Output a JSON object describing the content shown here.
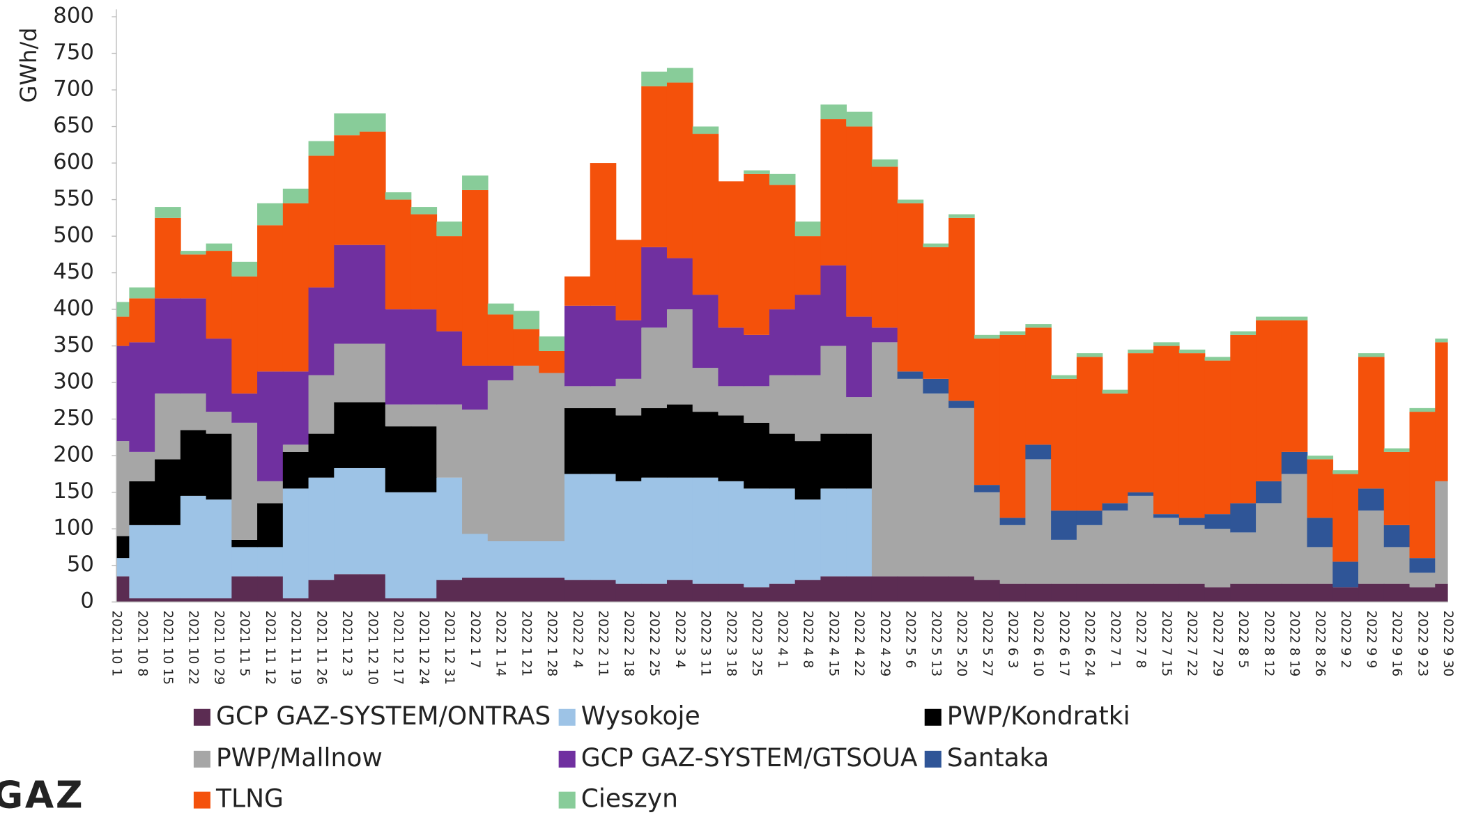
{
  "chart_data": {
    "type": "stacked_bar",
    "y_axis_label": "GWh/d",
    "logo": "GAZ",
    "ylim": [
      0,
      800
    ],
    "yticks": [
      0,
      50,
      100,
      150,
      200,
      250,
      300,
      350,
      400,
      450,
      500,
      550,
      600,
      650,
      700,
      750,
      800
    ],
    "categories": [
      "2021 10 1",
      "2021 10 8",
      "2021 10 15",
      "2021 10 22",
      "2021 10 29",
      "2021 11 5",
      "2021 11 12",
      "2021 11 19",
      "2021 11 26",
      "2021 12 3",
      "2021 12 10",
      "2021 12 17",
      "2021 12 24",
      "2021 12 31",
      "2022 1 7",
      "2022 1 14",
      "2022 1 21",
      "2022 1 28",
      "2022 2 4",
      "2022 2 11",
      "2022 2 18",
      "2022 2 25",
      "2022 3 4",
      "2022 3 11",
      "2022 3 18",
      "2022 3 25",
      "2022 4 1",
      "2022 4 8",
      "2022 4 15",
      "2022 4 22",
      "2022 4 29",
      "2022 5 6",
      "2022 5 13",
      "2022 5 20",
      "2022 5 27",
      "2022 6 3",
      "2022 6 10",
      "2022 6 17",
      "2022 6 24",
      "2022 7 1",
      "2022 7 8",
      "2022 7 15",
      "2022 7 22",
      "2022 7 29",
      "2022 8 5",
      "2022 8 12",
      "2022 8 19",
      "2022 8 26",
      "2022 9 2",
      "2022 9 9",
      "2022 9 16",
      "2022 9 23",
      "2022 9 30"
    ],
    "series": [
      {
        "name": "GCP GAZ-SYSTEM/ONTRAS",
        "color": "#5b2c52",
        "values": [
          35,
          5,
          5,
          5,
          5,
          35,
          35,
          5,
          30,
          38,
          38,
          5,
          5,
          30,
          33,
          33,
          33,
          33,
          30,
          30,
          25,
          25,
          30,
          25,
          25,
          20,
          25,
          30,
          35,
          35,
          35,
          35,
          35,
          35,
          30,
          25,
          25,
          25,
          25,
          25,
          25,
          25,
          25,
          20,
          25,
          25,
          25,
          25,
          20,
          25,
          25,
          20,
          25
        ]
      },
      {
        "name": "Wysokoje",
        "color": "#9dc3e6",
        "values": [
          25,
          100,
          100,
          140,
          135,
          40,
          40,
          150,
          140,
          145,
          145,
          145,
          145,
          140,
          60,
          50,
          50,
          50,
          145,
          145,
          140,
          145,
          140,
          145,
          140,
          135,
          130,
          110,
          120,
          120,
          0,
          0,
          0,
          0,
          0,
          0,
          0,
          0,
          0,
          0,
          0,
          0,
          0,
          0,
          0,
          0,
          0,
          0,
          0,
          0,
          0,
          0,
          0
        ]
      },
      {
        "name": "PWP/Kondratki",
        "color": "#000000",
        "values": [
          30,
          60,
          90,
          90,
          90,
          10,
          60,
          50,
          60,
          90,
          90,
          90,
          90,
          0,
          0,
          0,
          0,
          0,
          90,
          90,
          90,
          95,
          100,
          90,
          90,
          90,
          75,
          80,
          75,
          75,
          0,
          0,
          0,
          0,
          0,
          0,
          0,
          0,
          0,
          0,
          0,
          0,
          0,
          0,
          0,
          0,
          0,
          0,
          0,
          0,
          0,
          0,
          0
        ]
      },
      {
        "name": "PWP/Mallnow",
        "color": "#a6a6a6",
        "values": [
          130,
          40,
          90,
          50,
          30,
          160,
          30,
          10,
          80,
          80,
          80,
          30,
          30,
          100,
          170,
          220,
          240,
          230,
          30,
          30,
          50,
          110,
          130,
          60,
          40,
          50,
          80,
          90,
          120,
          50,
          320,
          270,
          250,
          230,
          120,
          80,
          170,
          60,
          80,
          100,
          120,
          90,
          80,
          80,
          70,
          110,
          150,
          50,
          0,
          100,
          50,
          20,
          140
        ]
      },
      {
        "name": "GCP GAZ-SYSTEM/GTSOUA",
        "color": "#7030a0",
        "values": [
          130,
          150,
          130,
          130,
          100,
          40,
          150,
          100,
          120,
          135,
          135,
          130,
          130,
          100,
          60,
          20,
          0,
          0,
          110,
          110,
          80,
          110,
          70,
          100,
          80,
          70,
          90,
          110,
          110,
          110,
          20,
          0,
          0,
          0,
          0,
          0,
          0,
          0,
          0,
          0,
          0,
          0,
          0,
          0,
          0,
          0,
          0,
          0,
          0,
          0,
          0,
          0,
          0
        ]
      },
      {
        "name": "Santaka",
        "color": "#2f5597",
        "values": [
          0,
          0,
          0,
          0,
          0,
          0,
          0,
          0,
          0,
          0,
          0,
          0,
          0,
          0,
          0,
          0,
          0,
          0,
          0,
          0,
          0,
          0,
          0,
          0,
          0,
          0,
          0,
          0,
          0,
          0,
          0,
          10,
          20,
          10,
          10,
          10,
          20,
          40,
          20,
          10,
          5,
          5,
          10,
          20,
          40,
          30,
          30,
          40,
          35,
          30,
          30,
          20,
          0
        ]
      },
      {
        "name": "TLNG",
        "color": "#f4510b",
        "values": [
          40,
          60,
          110,
          60,
          120,
          160,
          200,
          230,
          180,
          150,
          155,
          150,
          130,
          130,
          240,
          70,
          50,
          30,
          40,
          195,
          110,
          220,
          240,
          220,
          200,
          220,
          170,
          80,
          200,
          260,
          220,
          230,
          180,
          250,
          200,
          250,
          160,
          180,
          210,
          150,
          190,
          230,
          225,
          210,
          230,
          220,
          180,
          80,
          120,
          180,
          100,
          200,
          190
        ]
      },
      {
        "name": "Cieszyn",
        "color": "#88cc99",
        "values": [
          20,
          15,
          15,
          5,
          10,
          20,
          30,
          20,
          20,
          30,
          25,
          10,
          10,
          20,
          20,
          15,
          25,
          20,
          0,
          0,
          0,
          20,
          20,
          10,
          0,
          5,
          15,
          20,
          20,
          20,
          10,
          5,
          5,
          5,
          5,
          5,
          5,
          5,
          5,
          5,
          5,
          5,
          5,
          5,
          5,
          5,
          5,
          5,
          5,
          5,
          5,
          5,
          5
        ]
      }
    ]
  }
}
